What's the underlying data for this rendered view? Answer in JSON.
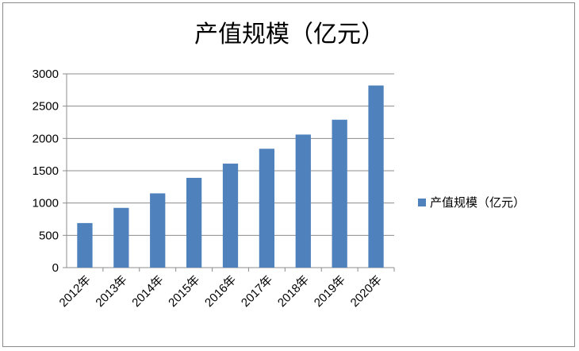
{
  "chart_data": {
    "type": "bar",
    "title": "产值规模（亿元）",
    "categories": [
      "2012年",
      "2013年",
      "2014年",
      "2015年",
      "2016年",
      "2017年",
      "2018年",
      "2019年",
      "2020年"
    ],
    "series": [
      {
        "name": "产值规模（亿元）",
        "values": [
          690,
          925,
          1150,
          1390,
          1610,
          1840,
          2060,
          2290,
          2820
        ]
      }
    ],
    "ylim": [
      0,
      3000
    ],
    "yticks": [
      0,
      500,
      1000,
      1500,
      2000,
      2500,
      3000
    ],
    "grid": true,
    "legend": "right",
    "colors": {
      "bar": "#4F81BD",
      "grid": "#8C8C8C",
      "axis": "#8C8C8C"
    }
  }
}
